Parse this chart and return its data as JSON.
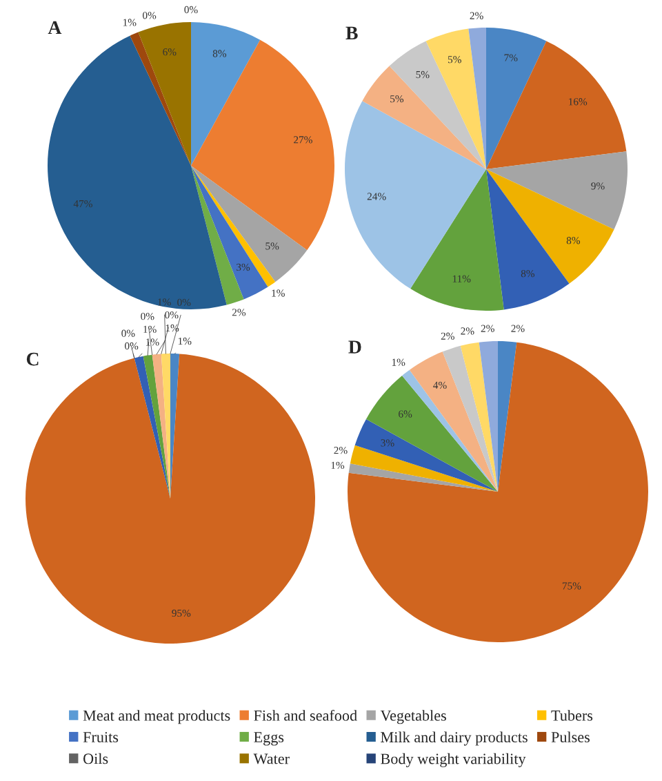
{
  "chart_data": [
    {
      "type": "pie",
      "title": "A",
      "categories": [
        "Meat and meat products",
        "Fish and seafood",
        "Vegetables",
        "Tubers",
        "Fruits",
        "Eggs",
        "Milk and dairy products",
        "Pulses",
        "Oils",
        "Water",
        "Body weight variability"
      ],
      "values": [
        8,
        27,
        5,
        1,
        3,
        2,
        47,
        1,
        0,
        6,
        0
      ],
      "colors": [
        "#5b9bd5",
        "#ed7d31",
        "#a5a5a5",
        "#ffc000",
        "#4472c4",
        "#70ad47",
        "#255e91",
        "#9e480e",
        "#636363",
        "#997300",
        "#264478"
      ],
      "legend": "bottom",
      "value_labels": [
        "8%",
        "27%",
        "5%",
        "1%",
        "3%",
        "2%",
        "47%",
        "1%",
        "0%",
        "6%",
        "0%"
      ]
    },
    {
      "type": "pie",
      "title": "B",
      "categories": [
        null,
        null,
        null,
        null,
        null,
        null,
        null,
        null,
        null,
        null,
        null
      ],
      "values": [
        7,
        16,
        9,
        8,
        8,
        11,
        24,
        5,
        5,
        5,
        2
      ],
      "colors": [
        "#4a86c5",
        "#d0651f",
        "#a5a5a5",
        "#efb100",
        "#3260b5",
        "#63a23d",
        "#9dc3e6",
        "#f4b183",
        "#c9c9c9",
        "#ffd966",
        "#8faadc"
      ],
      "value_labels": [
        "7%",
        "16%",
        "9%",
        "8%",
        "8%",
        "11%",
        "24%",
        "5%",
        "5%",
        "5%",
        "2%"
      ]
    },
    {
      "type": "pie",
      "title": "C",
      "categories": [
        null,
        null,
        null,
        null,
        null,
        null,
        null,
        null,
        null,
        null,
        null
      ],
      "values": [
        1,
        95,
        0,
        0,
        1,
        1,
        0,
        1,
        0,
        1,
        0
      ],
      "colors": [
        "#4a86c5",
        "#d0651f",
        "#a5a5a5",
        "#efb100",
        "#3260b5",
        "#63a23d",
        "#9dc3e6",
        "#f4b183",
        "#c9c9c9",
        "#ffd966",
        "#8faadc"
      ],
      "value_labels": [
        "1%",
        "95%",
        "0%",
        "0%",
        "1%",
        "1%",
        "0%",
        "1%",
        "0%",
        "1%",
        "0%"
      ]
    },
    {
      "type": "pie",
      "title": "D",
      "categories": [
        null,
        null,
        null,
        null,
        null,
        null,
        null,
        null,
        null,
        null,
        null
      ],
      "values": [
        2,
        75,
        1,
        2,
        3,
        6,
        1,
        4,
        2,
        2,
        2
      ],
      "colors": [
        "#4a86c5",
        "#d0651f",
        "#a5a5a5",
        "#efb100",
        "#3260b5",
        "#63a23d",
        "#9dc3e6",
        "#f4b183",
        "#c9c9c9",
        "#ffd966",
        "#8faadc"
      ],
      "value_labels": [
        "2%",
        "75%",
        "1%",
        "2%",
        "3%",
        "6%",
        "1%",
        "4%",
        "2%",
        "2%",
        "2%"
      ]
    }
  ]
}
